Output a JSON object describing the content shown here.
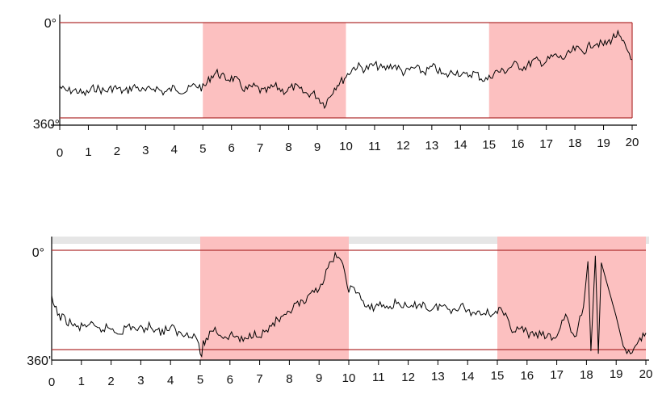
{
  "chart_data": [
    {
      "type": "line",
      "title": "",
      "xlabel": "",
      "ylabel": "",
      "xlim": [
        0,
        20
      ],
      "ylim": [
        360,
        0
      ],
      "y_tick_labels": [
        "0°",
        "360°"
      ],
      "x_tick_labels": [
        "0",
        "1",
        "2",
        "3",
        "4",
        "5",
        "6",
        "7",
        "8",
        "9",
        "10",
        "11",
        "12",
        "13",
        "14",
        "15",
        "16",
        "17",
        "18",
        "19",
        "20"
      ],
      "shaded_intervals": [
        [
          5,
          10
        ],
        [
          15,
          20
        ]
      ],
      "colors": {
        "shade": "#fcc0c0",
        "bounds": "#b03030",
        "line": "#000000"
      },
      "series": [
        {
          "x": [
            0,
            0.5,
            1,
            1.5,
            2,
            2.5,
            3,
            3.5,
            4,
            4.5,
            5,
            5.25,
            5.5,
            5.75,
            6,
            6.5,
            7,
            7.5,
            8,
            8.5,
            9,
            9.25,
            9.5,
            9.75,
            10,
            10.5,
            11,
            11.5,
            12,
            12.5,
            13,
            13.5,
            14,
            14.5,
            15,
            15.5,
            16,
            16.5,
            17,
            17.5,
            18,
            18.5,
            19,
            19.25,
            19.5,
            19.75,
            20
          ],
          "y": [
            240,
            265,
            260,
            250,
            255,
            250,
            252,
            255,
            255,
            250,
            240,
            210,
            195,
            200,
            215,
            245,
            255,
            250,
            250,
            255,
            285,
            300,
            270,
            230,
            195,
            165,
            170,
            165,
            180,
            180,
            175,
            195,
            190,
            200,
            210,
            175,
            165,
            155,
            140,
            130,
            110,
            90,
            75,
            70,
            50,
            80,
            140
          ]
        }
      ]
    },
    {
      "type": "line",
      "title": "",
      "xlabel": "",
      "ylabel": "",
      "xlim": [
        0,
        20
      ],
      "ylim": [
        360,
        0
      ],
      "y_tick_labels": [
        "0°",
        "360'"
      ],
      "x_tick_labels": [
        "0",
        "1",
        "2",
        "3",
        "4",
        "5",
        "6",
        "7",
        "8",
        "9",
        "10",
        "11",
        "12",
        "13",
        "14",
        "15",
        "16",
        "17",
        "18",
        "19",
        "20"
      ],
      "shaded_intervals": [
        [
          5,
          10
        ],
        [
          15,
          20
        ]
      ],
      "colors": {
        "shade": "#fcc0c0",
        "bounds": "#b03030",
        "line": "#000000"
      },
      "series": [
        {
          "x": [
            0,
            0.25,
            0.5,
            1,
            1.5,
            2,
            2.5,
            3,
            3.5,
            4,
            4.5,
            4.9,
            5.05,
            5.1,
            5.2,
            5.5,
            6,
            6.5,
            7,
            7.5,
            8,
            8.5,
            9,
            9.3,
            9.6,
            9.8,
            10,
            10.3,
            10.6,
            11,
            11.5,
            12,
            12.5,
            13,
            13.5,
            14,
            14.5,
            15,
            15.5,
            16,
            16.3,
            16.6,
            17,
            17.3,
            17.6,
            17.9,
            18.05,
            18.15,
            18.3,
            18.4,
            18.5,
            19,
            19.3,
            19.6,
            19.8,
            20
          ],
          "y": [
            180,
            230,
            265,
            275,
            280,
            290,
            285,
            280,
            285,
            290,
            300,
            320,
            385,
            335,
            320,
            290,
            315,
            320,
            300,
            270,
            225,
            185,
            140,
            60,
            20,
            60,
            130,
            160,
            205,
            205,
            195,
            205,
            200,
            210,
            205,
            215,
            230,
            215,
            275,
            305,
            300,
            320,
            305,
            240,
            320,
            205,
            40,
            365,
            20,
            375,
            45,
            240,
            375,
            360,
            315,
            300
          ]
        }
      ]
    }
  ]
}
